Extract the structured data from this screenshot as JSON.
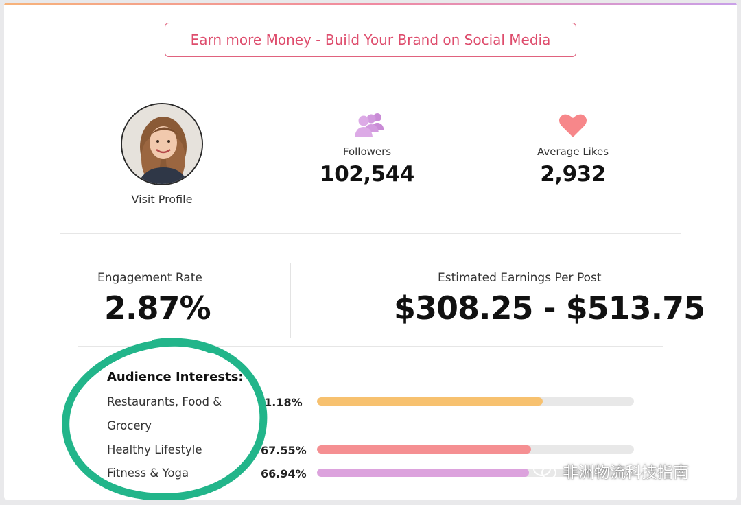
{
  "cta": {
    "label": "Earn more Money - Build Your Brand on Social Media"
  },
  "profile": {
    "visit_label": "Visit Profile"
  },
  "followers": {
    "label": "Followers",
    "value": "102,544",
    "icon": "users-group-icon"
  },
  "average_likes": {
    "label": "Average Likes",
    "value": "2,932",
    "icon": "heart-icon"
  },
  "engagement": {
    "label": "Engagement Rate",
    "value": "2.87%"
  },
  "earnings": {
    "label": "Estimated Earnings Per Post",
    "value": "$308.25 - $513.75"
  },
  "interests": {
    "title": "Audience Interests:",
    "items": [
      {
        "name": "Restaurants, Food & Grocery",
        "percent_label": "71.18%",
        "fill_fraction": 0.7118,
        "color": "#f7c16f"
      },
      {
        "name": "Healthy Lifestyle",
        "percent_label": "67.55%",
        "fill_fraction": 0.6755,
        "color": "#f58f92"
      },
      {
        "name": "Fitness & Yoga",
        "percent_label": "66.94%",
        "fill_fraction": 0.6694,
        "color": "#dca2dd"
      }
    ]
  },
  "annotation_color": "#22b58a",
  "watermark": {
    "text": "非洲物流科技指南",
    "icon": "wechat-icon"
  }
}
